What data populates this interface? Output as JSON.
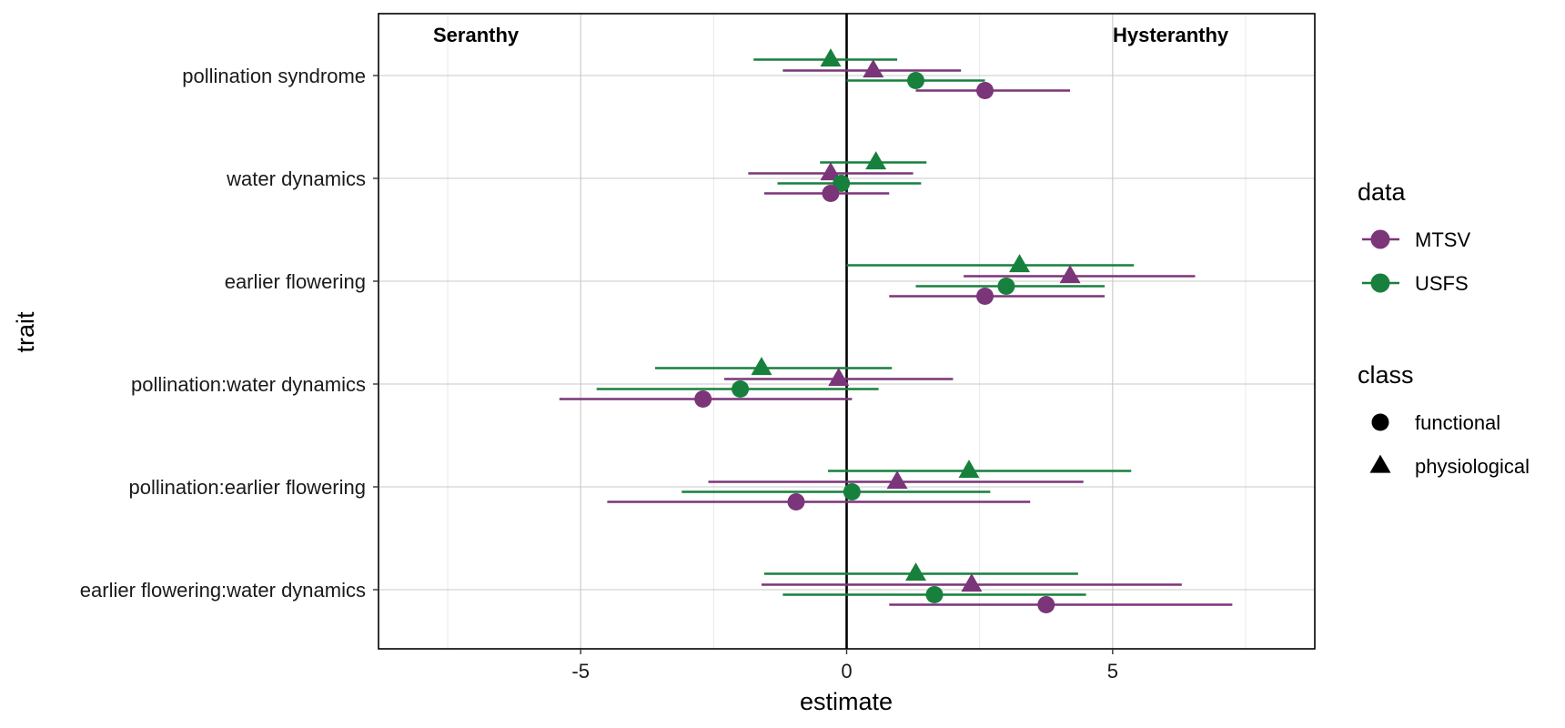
{
  "chart_data": {
    "type": "scatter",
    "subtype": "coefficient plot with horizontal confidence intervals",
    "xlabel": "estimate",
    "ylabel": "trait",
    "xlim": [
      -8.8,
      8.8
    ],
    "x_ticks": [
      -5,
      0,
      5
    ],
    "x_tick_labels": [
      "-5",
      "0",
      "5"
    ],
    "grid": true,
    "reference_line_x": 0,
    "annotations": {
      "left": "Seranthy",
      "right": "Hysteranthy"
    },
    "categories": [
      "pollination syndrome",
      "water dynamics",
      "earlier flowering",
      "pollination:water dynamics",
      "pollination:earlier flowering",
      "earlier flowering:water dynamics"
    ],
    "colors": {
      "MTSV": "#7b3579",
      "USFS": "#17803d"
    },
    "legend": {
      "placement": "right",
      "data": {
        "title": "data",
        "entries": [
          "MTSV",
          "USFS"
        ]
      },
      "class": {
        "title": "class",
        "entries": [
          "functional",
          "physiological"
        ]
      }
    },
    "series": [
      {
        "data": "USFS",
        "class": "physiological",
        "estimate": [
          -0.3,
          0.55,
          3.25,
          -1.6,
          2.3,
          1.3
        ],
        "lower": [
          -1.75,
          -0.5,
          0.0,
          -3.6,
          -0.35,
          -1.55
        ],
        "upper": [
          0.95,
          1.5,
          5.4,
          0.85,
          5.35,
          4.35
        ]
      },
      {
        "data": "MTSV",
        "class": "physiological",
        "estimate": [
          0.5,
          -0.3,
          4.2,
          -0.15,
          0.95,
          2.35
        ],
        "lower": [
          -1.2,
          -1.85,
          2.2,
          -2.3,
          -2.6,
          -1.6
        ],
        "upper": [
          2.15,
          1.25,
          6.55,
          2.0,
          4.45,
          6.3
        ]
      },
      {
        "data": "USFS",
        "class": "functional",
        "estimate": [
          1.3,
          -0.1,
          3.0,
          -2.0,
          0.1,
          1.65
        ],
        "lower": [
          0.0,
          -1.3,
          1.3,
          -4.7,
          -3.1,
          -1.2
        ],
        "upper": [
          2.6,
          1.4,
          4.85,
          0.6,
          2.7,
          4.5
        ]
      },
      {
        "data": "MTSV",
        "class": "functional",
        "estimate": [
          2.6,
          -0.3,
          2.6,
          -2.7,
          -0.95,
          3.75
        ],
        "lower": [
          1.3,
          -1.55,
          0.8,
          -5.4,
          -4.5,
          0.8
        ],
        "upper": [
          4.2,
          0.8,
          4.85,
          0.1,
          3.45,
          7.25
        ]
      }
    ]
  }
}
